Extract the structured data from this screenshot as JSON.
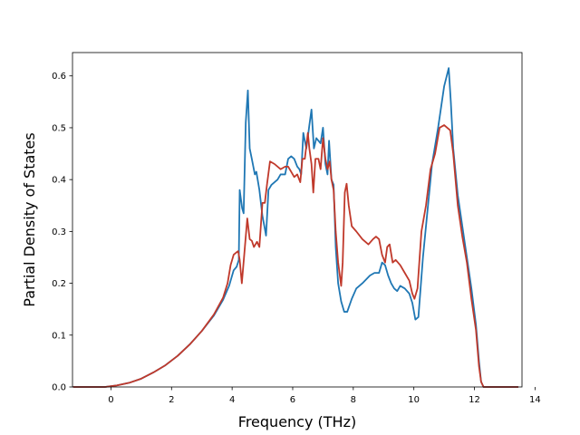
{
  "chart_data": {
    "type": "line",
    "xlabel": "Frequency (THz)",
    "ylabel": "Partial Density of States",
    "xlim": [
      -1.27,
      13.57
    ],
    "ylim": [
      0,
      0.645
    ],
    "xticks": [
      0,
      2,
      4,
      6,
      8,
      10,
      12,
      14
    ],
    "xtick_labels": [
      "0",
      "2",
      "4",
      "6",
      "8",
      "10",
      "12",
      "14"
    ],
    "yticks": [
      0.0,
      0.1,
      0.2,
      0.3,
      0.4,
      0.5,
      0.6
    ],
    "ytick_labels": [
      "0.0",
      "0.1",
      "0.2",
      "0.3",
      "0.4",
      "0.5",
      "0.6"
    ],
    "grid": false,
    "legend": "none",
    "series": [
      {
        "color": "#1f77b4",
        "points": [
          [
            -1.25,
            0.0
          ],
          [
            -0.2,
            0.0
          ],
          [
            0.2,
            0.003
          ],
          [
            0.6,
            0.008
          ],
          [
            1.0,
            0.016
          ],
          [
            1.4,
            0.028
          ],
          [
            1.8,
            0.042
          ],
          [
            2.2,
            0.06
          ],
          [
            2.6,
            0.082
          ],
          [
            3.0,
            0.108
          ],
          [
            3.4,
            0.138
          ],
          [
            3.7,
            0.168
          ],
          [
            3.9,
            0.195
          ],
          [
            4.05,
            0.225
          ],
          [
            4.15,
            0.232
          ],
          [
            4.22,
            0.245
          ],
          [
            4.25,
            0.38
          ],
          [
            4.33,
            0.345
          ],
          [
            4.38,
            0.335
          ],
          [
            4.45,
            0.51
          ],
          [
            4.52,
            0.572
          ],
          [
            4.58,
            0.46
          ],
          [
            4.65,
            0.44
          ],
          [
            4.75,
            0.41
          ],
          [
            4.8,
            0.415
          ],
          [
            4.9,
            0.38
          ],
          [
            5.0,
            0.33
          ],
          [
            5.08,
            0.305
          ],
          [
            5.12,
            0.292
          ],
          [
            5.2,
            0.38
          ],
          [
            5.3,
            0.39
          ],
          [
            5.5,
            0.4
          ],
          [
            5.6,
            0.41
          ],
          [
            5.75,
            0.41
          ],
          [
            5.85,
            0.44
          ],
          [
            5.95,
            0.445
          ],
          [
            6.05,
            0.44
          ],
          [
            6.15,
            0.425
          ],
          [
            6.22,
            0.42
          ],
          [
            6.28,
            0.41
          ],
          [
            6.35,
            0.49
          ],
          [
            6.45,
            0.46
          ],
          [
            6.55,
            0.505
          ],
          [
            6.62,
            0.535
          ],
          [
            6.7,
            0.46
          ],
          [
            6.78,
            0.48
          ],
          [
            6.85,
            0.475
          ],
          [
            6.92,
            0.47
          ],
          [
            7.0,
            0.5
          ],
          [
            7.08,
            0.43
          ],
          [
            7.15,
            0.41
          ],
          [
            7.2,
            0.475
          ],
          [
            7.28,
            0.4
          ],
          [
            7.35,
            0.39
          ],
          [
            7.42,
            0.27
          ],
          [
            7.5,
            0.2
          ],
          [
            7.6,
            0.165
          ],
          [
            7.7,
            0.145
          ],
          [
            7.8,
            0.145
          ],
          [
            7.95,
            0.17
          ],
          [
            8.1,
            0.19
          ],
          [
            8.3,
            0.2
          ],
          [
            8.55,
            0.215
          ],
          [
            8.7,
            0.22
          ],
          [
            8.85,
            0.22
          ],
          [
            8.95,
            0.24
          ],
          [
            9.05,
            0.235
          ],
          [
            9.15,
            0.215
          ],
          [
            9.25,
            0.2
          ],
          [
            9.35,
            0.19
          ],
          [
            9.45,
            0.185
          ],
          [
            9.55,
            0.195
          ],
          [
            9.7,
            0.19
          ],
          [
            9.85,
            0.18
          ],
          [
            9.95,
            0.162
          ],
          [
            10.05,
            0.13
          ],
          [
            10.15,
            0.135
          ],
          [
            10.3,
            0.25
          ],
          [
            10.45,
            0.34
          ],
          [
            10.6,
            0.43
          ],
          [
            10.8,
            0.5
          ],
          [
            11.0,
            0.58
          ],
          [
            11.15,
            0.615
          ],
          [
            11.22,
            0.55
          ],
          [
            11.3,
            0.46
          ],
          [
            11.45,
            0.37
          ],
          [
            11.6,
            0.31
          ],
          [
            11.75,
            0.25
          ],
          [
            11.9,
            0.19
          ],
          [
            12.05,
            0.12
          ],
          [
            12.15,
            0.05
          ],
          [
            12.22,
            0.01
          ],
          [
            12.3,
            0.0
          ],
          [
            13.45,
            0.0
          ]
        ]
      },
      {
        "color": "#c0392b",
        "points": [
          [
            -1.25,
            0.0
          ],
          [
            -0.2,
            0.0
          ],
          [
            0.2,
            0.003
          ],
          [
            0.6,
            0.008
          ],
          [
            1.0,
            0.016
          ],
          [
            1.4,
            0.028
          ],
          [
            1.8,
            0.042
          ],
          [
            2.2,
            0.06
          ],
          [
            2.6,
            0.082
          ],
          [
            3.0,
            0.108
          ],
          [
            3.4,
            0.14
          ],
          [
            3.7,
            0.172
          ],
          [
            3.85,
            0.2
          ],
          [
            3.95,
            0.235
          ],
          [
            4.05,
            0.255
          ],
          [
            4.15,
            0.26
          ],
          [
            4.2,
            0.262
          ],
          [
            4.25,
            0.245
          ],
          [
            4.32,
            0.2
          ],
          [
            4.4,
            0.255
          ],
          [
            4.5,
            0.325
          ],
          [
            4.58,
            0.285
          ],
          [
            4.65,
            0.282
          ],
          [
            4.72,
            0.27
          ],
          [
            4.82,
            0.28
          ],
          [
            4.9,
            0.27
          ],
          [
            5.0,
            0.355
          ],
          [
            5.08,
            0.355
          ],
          [
            5.15,
            0.39
          ],
          [
            5.25,
            0.435
          ],
          [
            5.4,
            0.43
          ],
          [
            5.6,
            0.42
          ],
          [
            5.75,
            0.425
          ],
          [
            5.85,
            0.425
          ],
          [
            5.95,
            0.415
          ],
          [
            6.05,
            0.405
          ],
          [
            6.15,
            0.41
          ],
          [
            6.25,
            0.395
          ],
          [
            6.32,
            0.44
          ],
          [
            6.4,
            0.44
          ],
          [
            6.5,
            0.49
          ],
          [
            6.55,
            0.46
          ],
          [
            6.62,
            0.43
          ],
          [
            6.68,
            0.375
          ],
          [
            6.75,
            0.44
          ],
          [
            6.85,
            0.44
          ],
          [
            6.92,
            0.42
          ],
          [
            7.0,
            0.48
          ],
          [
            7.08,
            0.44
          ],
          [
            7.15,
            0.42
          ],
          [
            7.22,
            0.435
          ],
          [
            7.28,
            0.4
          ],
          [
            7.35,
            0.38
          ],
          [
            7.42,
            0.3
          ],
          [
            7.5,
            0.24
          ],
          [
            7.6,
            0.195
          ],
          [
            7.65,
            0.24
          ],
          [
            7.72,
            0.375
          ],
          [
            7.78,
            0.392
          ],
          [
            7.85,
            0.35
          ],
          [
            7.95,
            0.31
          ],
          [
            8.1,
            0.3
          ],
          [
            8.3,
            0.285
          ],
          [
            8.5,
            0.275
          ],
          [
            8.65,
            0.285
          ],
          [
            8.75,
            0.29
          ],
          [
            8.85,
            0.285
          ],
          [
            8.95,
            0.255
          ],
          [
            9.05,
            0.24
          ],
          [
            9.12,
            0.27
          ],
          [
            9.2,
            0.275
          ],
          [
            9.3,
            0.24
          ],
          [
            9.4,
            0.245
          ],
          [
            9.55,
            0.235
          ],
          [
            9.7,
            0.22
          ],
          [
            9.85,
            0.205
          ],
          [
            9.95,
            0.18
          ],
          [
            10.02,
            0.17
          ],
          [
            10.12,
            0.19
          ],
          [
            10.25,
            0.3
          ],
          [
            10.4,
            0.35
          ],
          [
            10.55,
            0.42
          ],
          [
            10.7,
            0.45
          ],
          [
            10.85,
            0.5
          ],
          [
            11.0,
            0.505
          ],
          [
            11.1,
            0.5
          ],
          [
            11.2,
            0.495
          ],
          [
            11.3,
            0.45
          ],
          [
            11.45,
            0.35
          ],
          [
            11.6,
            0.29
          ],
          [
            11.75,
            0.24
          ],
          [
            11.9,
            0.17
          ],
          [
            12.05,
            0.11
          ],
          [
            12.15,
            0.04
          ],
          [
            12.22,
            0.01
          ],
          [
            12.3,
            0.0
          ],
          [
            13.45,
            0.0
          ]
        ]
      }
    ]
  }
}
